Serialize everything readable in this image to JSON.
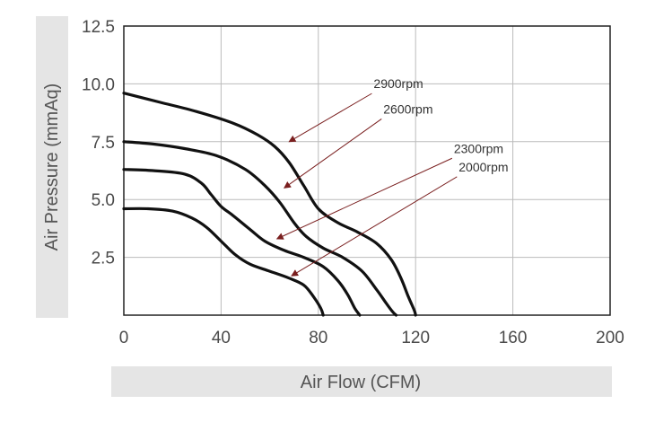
{
  "chart_data": {
    "type": "line",
    "title": "",
    "xlabel": "Air Flow (CFM)",
    "ylabel": "Air Pressure (mmAq)",
    "xlim": [
      0,
      200
    ],
    "ylim": [
      0,
      12.5
    ],
    "x_ticks": [
      "0",
      "40",
      "80",
      "120",
      "160",
      "200"
    ],
    "y_ticks": [
      "2.5",
      "5.0",
      "7.5",
      "10.0",
      "12.5"
    ],
    "grid": true,
    "colors": {
      "curve": "#111111",
      "grid": "#bbbbbb",
      "frame": "#222222",
      "arrow": "#7a1f1f",
      "label_band": "#e5e5e5"
    },
    "series": [
      {
        "name": "2900rpm",
        "x": [
          0,
          15,
          30,
          45,
          55,
          62,
          68,
          74,
          80,
          88,
          96,
          104,
          110,
          114,
          117,
          119.5,
          120
        ],
        "y": [
          9.6,
          9.2,
          8.8,
          8.3,
          7.8,
          7.3,
          6.6,
          5.6,
          4.6,
          4.0,
          3.6,
          3.1,
          2.4,
          1.6,
          0.8,
          0.2,
          0
        ]
      },
      {
        "name": "2600rpm",
        "x": [
          0,
          12,
          25,
          38,
          50,
          58,
          64,
          70,
          75,
          82,
          90,
          98,
          104,
          108,
          110.5,
          112
        ],
        "y": [
          7.5,
          7.4,
          7.2,
          6.9,
          6.3,
          5.6,
          4.9,
          4.0,
          3.4,
          2.9,
          2.5,
          1.9,
          1.1,
          0.5,
          0.15,
          0
        ]
      },
      {
        "name": "2300rpm",
        "x": [
          0,
          12,
          25,
          32,
          36,
          40,
          45,
          52,
          58,
          66,
          74,
          82,
          88,
          92,
          95,
          97
        ],
        "y": [
          6.3,
          6.25,
          6.1,
          5.7,
          5.2,
          4.7,
          4.3,
          3.7,
          3.2,
          2.8,
          2.5,
          2.1,
          1.5,
          0.9,
          0.3,
          0
        ]
      },
      {
        "name": "2000rpm",
        "x": [
          0,
          10,
          20,
          28,
          34,
          40,
          46,
          52,
          60,
          68,
          74,
          78,
          81,
          82
        ],
        "y": [
          4.6,
          4.6,
          4.5,
          4.2,
          3.8,
          3.2,
          2.6,
          2.2,
          1.9,
          1.6,
          1.3,
          0.8,
          0.3,
          0
        ]
      }
    ],
    "annotations": [
      {
        "text": "2900rpm",
        "target": [
          68,
          7.5
        ],
        "label_at": [
          102,
          9.7
        ]
      },
      {
        "text": "2600rpm",
        "target": [
          66,
          5.5
        ],
        "label_at": [
          106,
          8.6
        ]
      },
      {
        "text": "2300rpm",
        "target": [
          63,
          3.3
        ],
        "label_at": [
          135,
          6.9
        ]
      },
      {
        "text": "2000rpm",
        "target": [
          69,
          1.7
        ],
        "label_at": [
          137,
          6.1
        ]
      }
    ]
  }
}
